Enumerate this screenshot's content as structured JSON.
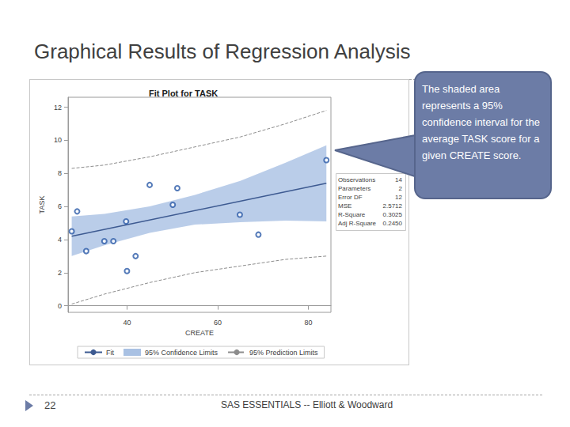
{
  "slide": {
    "title": "Graphical Results of Regression Analysis",
    "callout": "The shaded area represents a 95% confidence interval for the average TASK score for a given CREATE score.",
    "page_number": 22,
    "footer": "SAS ESSENTIALS -- Elliott & Woodward"
  },
  "chart_data": {
    "type": "scatter",
    "title": "Fit Plot for TASK",
    "x_label": "CREATE",
    "y_label": "TASK",
    "xlim": [
      27,
      85
    ],
    "xticks": [
      40,
      60,
      80
    ],
    "ylim": [
      -0.4,
      12.6
    ],
    "yticks": [
      0,
      2,
      4,
      6,
      8,
      10,
      12
    ],
    "grid": false,
    "series": [
      {
        "type": "scatter",
        "marker": "open_circle",
        "color": "#2a5aa8",
        "x": [
          27.8,
          29.0,
          31.0,
          35.0,
          37.0,
          39.8,
          40.0,
          41.9,
          45.0,
          50.1,
          51.1,
          64.9,
          69.0,
          84.0
        ],
        "values": [
          4.5,
          5.7,
          3.3,
          3.9,
          3.9,
          5.1,
          2.1,
          3.0,
          7.3,
          6.1,
          7.1,
          5.5,
          4.3,
          8.8
        ]
      },
      {
        "name": "Fit",
        "type": "line",
        "color": "#3d5a91",
        "x": [
          27.8,
          84.0
        ],
        "values": [
          4.2,
          7.4
        ]
      },
      {
        "name": "95% Confidence Limits",
        "type": "band",
        "color": "#a9c1e3",
        "x": [
          27.8,
          35,
          45,
          55,
          65,
          75,
          84
        ],
        "lower": [
          3.0,
          3.65,
          4.4,
          4.9,
          5.05,
          5.15,
          5.1
        ],
        "upper": [
          5.4,
          5.55,
          6.0,
          6.7,
          7.55,
          8.65,
          9.7
        ]
      },
      {
        "name": "95% Prediction Limits",
        "type": "line",
        "line_style": "dashed",
        "color": "#8c8c8c",
        "x": [
          27.8,
          35,
          45,
          55,
          65,
          75,
          84
        ],
        "lower": [
          0.1,
          0.7,
          1.4,
          2.0,
          2.4,
          2.8,
          3.0
        ],
        "upper": [
          8.3,
          8.5,
          9.0,
          9.6,
          10.2,
          11.0,
          11.8
        ]
      }
    ],
    "stats": [
      {
        "label": "Observations",
        "value": "14"
      },
      {
        "label": "Parameters",
        "value": "2"
      },
      {
        "label": "Error DF",
        "value": "12"
      },
      {
        "label": "MSE",
        "value": "2.5712"
      },
      {
        "label": "R-Square",
        "value": "0.3025"
      },
      {
        "label": "Adj R-Square",
        "value": "0.2450"
      }
    ]
  }
}
